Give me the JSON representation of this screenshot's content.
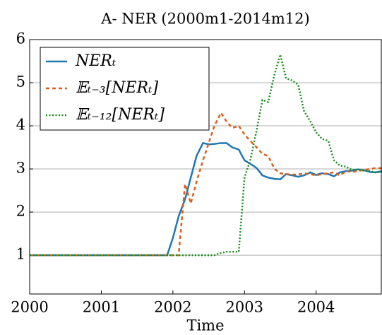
{
  "chart_data": {
    "type": "line",
    "title": "A- NER (2000m1-2014m12)",
    "x_label": "Time",
    "x": [
      2000,
      2001.92,
      2002,
      2002.08,
      2002.17,
      2002.25,
      2002.33,
      2002.42,
      2002.5,
      2002.58,
      2002.67,
      2002.75,
      2002.83,
      2002.92,
      2003,
      2003.08,
      2003.17,
      2003.25,
      2003.33,
      2003.42,
      2003.5,
      2003.58,
      2003.67,
      2003.75,
      2003.83,
      2003.92,
      2004,
      2004.08,
      2004.17,
      2004.25,
      2004.33,
      2004.42,
      2004.5,
      2004.58,
      2004.67,
      2004.75,
      2004.83,
      2004.92
    ],
    "series": [
      {
        "name": "NERₜ",
        "color": "#1f77b4",
        "dash": "solid",
        "values": [
          1,
          1,
          1.4,
          1.9,
          2.3,
          2.8,
          3.3,
          3.6,
          3.57,
          3.58,
          3.6,
          3.6,
          3.5,
          3.45,
          3.2,
          3.12,
          3.02,
          2.85,
          2.8,
          2.77,
          2.76,
          2.88,
          2.85,
          2.82,
          2.85,
          2.92,
          2.86,
          2.9,
          2.88,
          2.83,
          2.92,
          2.95,
          2.96,
          2.99,
          2.97,
          2.93,
          2.92,
          2.95
        ]
      },
      {
        "name": "𝔼ₜ₋₃[NERₜ]",
        "color": "#d95f1e",
        "dash": "dashed",
        "values": [
          1,
          1,
          1,
          1,
          2.65,
          2.2,
          2.7,
          3.2,
          3.6,
          4.0,
          4.3,
          4.1,
          3.95,
          4.0,
          3.8,
          3.65,
          3.5,
          3.35,
          3.3,
          3.0,
          2.9,
          2.88,
          2.87,
          2.87,
          2.9,
          2.88,
          2.85,
          2.88,
          2.9,
          2.92,
          2.85,
          2.95,
          2.93,
          2.95,
          2.98,
          3.0,
          3.02,
          3.02
        ]
      },
      {
        "name": "𝔼ₜ₋₁₂[NERₜ]",
        "color": "#1a8c1a",
        "dash": "dotted",
        "values": [
          1,
          1,
          1,
          1,
          1,
          1,
          1,
          1,
          1,
          1,
          1.05,
          1.08,
          1.08,
          1.08,
          2.8,
          3.2,
          3.9,
          4.6,
          4.55,
          5.2,
          5.65,
          5.1,
          5.05,
          4.95,
          4.35,
          4.1,
          3.85,
          3.7,
          3.65,
          3.2,
          3.08,
          3.05,
          2.98,
          2.98,
          2.96,
          2.95,
          2.92,
          2.93
        ]
      }
    ],
    "xlim": [
      2000,
      2004.92
    ],
    "xticks": [
      2000,
      2001,
      2002,
      2003,
      2004
    ],
    "ylim": [
      0.1,
      6
    ],
    "yticks": [
      1,
      2,
      3,
      4,
      5,
      6
    ],
    "grid": true,
    "legend": "upper-left"
  }
}
